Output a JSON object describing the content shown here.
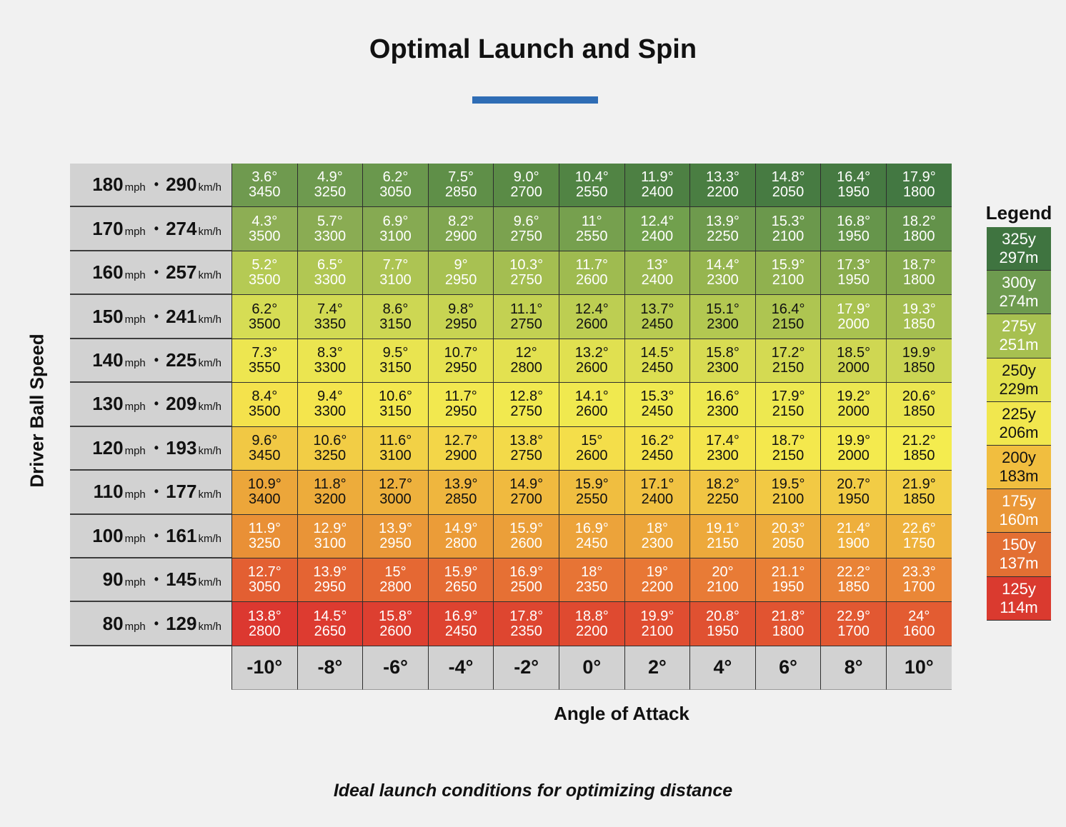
{
  "title": "Optimal Launch and Spin",
  "caption": "Ideal launch conditions for optimizing distance",
  "ylabel": "Driver Ball Speed",
  "xlabel": "Angle of Attack",
  "legend_title": "Legend",
  "units": {
    "mph": "mph",
    "kmh": "km/h",
    "separator": "•"
  },
  "legend": [
    {
      "yards": "325y",
      "meters": "297m",
      "color": "#3f7440"
    },
    {
      "yards": "300y",
      "meters": "274m",
      "color": "#6e9b4f"
    },
    {
      "yards": "275y",
      "meters": "251m",
      "color": "#a7c050"
    },
    {
      "yards": "250y",
      "meters": "229m",
      "color": "#e2e14d"
    },
    {
      "yards": "225y",
      "meters": "206m",
      "color": "#f1e74e"
    },
    {
      "yards": "200y",
      "meters": "183m",
      "color": "#f1be3f"
    },
    {
      "yards": "175y",
      "meters": "160m",
      "color": "#ea9737"
    },
    {
      "yards": "150y",
      "meters": "137m",
      "color": "#e36f33"
    },
    {
      "yards": "125y",
      "meters": "114m",
      "color": "#da3a2f"
    }
  ],
  "chart_data": {
    "type": "table",
    "title": "Optimal Launch and Spin",
    "xlabel": "Angle of Attack",
    "ylabel": "Driver Ball Speed",
    "columns": [
      "-10°",
      "-8°",
      "-6°",
      "-4°",
      "-2°",
      "0°",
      "2°",
      "4°",
      "6°",
      "8°",
      "10°"
    ],
    "rows": [
      {
        "mph": "180",
        "kmh": "290",
        "launch": [
          "3.6°",
          "4.9°",
          "6.2°",
          "7.5°",
          "9.0°",
          "10.4°",
          "11.9°",
          "13.3°",
          "14.8°",
          "16.4°",
          "17.9°"
        ],
        "spin": [
          "3450",
          "3250",
          "3050",
          "2850",
          "2700",
          "2550",
          "2400",
          "2200",
          "2050",
          "1950",
          "1800"
        ],
        "colors": [
          "#6f9a4f",
          "#6e9a4f",
          "#6a984d",
          "#5f8f48",
          "#5a8b46",
          "#518444",
          "#4d8043",
          "#4a7e42",
          "#477b42",
          "#467a42",
          "#437842"
        ]
      },
      {
        "mph": "170",
        "kmh": "274",
        "launch": [
          "4.3°",
          "5.7°",
          "6.9°",
          "8.2°",
          "9.6°",
          "11°",
          "12.4°",
          "13.9°",
          "15.3°",
          "16.8°",
          "18.2°"
        ],
        "spin": [
          "3500",
          "3300",
          "3100",
          "2900",
          "2750",
          "2550",
          "2400",
          "2250",
          "2100",
          "1950",
          "1800"
        ],
        "colors": [
          "#8dae54",
          "#8aac53",
          "#86aa52",
          "#80a650",
          "#7ba24f",
          "#76a04e",
          "#71a04d",
          "#6e9a4d",
          "#6b984c",
          "#66954b",
          "#63924a"
        ]
      },
      {
        "mph": "160",
        "kmh": "257",
        "launch": [
          "5.2°",
          "6.5°",
          "7.7°",
          "9°",
          "10.3°",
          "11.7°",
          "13°",
          "14.4°",
          "15.9°",
          "17.3°",
          "18.7°"
        ],
        "spin": [
          "3500",
          "3300",
          "3100",
          "2950",
          "2750",
          "2600",
          "2400",
          "2300",
          "2100",
          "1950",
          "1800"
        ],
        "colors": [
          "#b5ca54",
          "#b1c753",
          "#adc453",
          "#a8c152",
          "#a4be51",
          "#9fbb50",
          "#9ab850",
          "#96b54f",
          "#90b14f",
          "#8aad4e",
          "#86aa4d"
        ]
      },
      {
        "mph": "150",
        "kmh": "241",
        "launch": [
          "6.2°",
          "7.4°",
          "8.6°",
          "9.8°",
          "11.1°",
          "12.4°",
          "13.7°",
          "15.1°",
          "16.4°",
          "17.9°",
          "19.3°"
        ],
        "spin": [
          "3500",
          "3350",
          "3150",
          "2950",
          "2750",
          "2600",
          "2450",
          "2300",
          "2150",
          "2000",
          "1850"
        ],
        "colors": [
          "#d6dd54",
          "#d2da53",
          "#cdd753",
          "#c8d452",
          "#c3d152",
          "#bdce52",
          "#b8cb51",
          "#b3c851",
          "#aec551",
          "#a9c250",
          "#a4be50"
        ]
      },
      {
        "mph": "140",
        "kmh": "225",
        "launch": [
          "7.3°",
          "8.3°",
          "9.5°",
          "10.7°",
          "12°",
          "13.2°",
          "14.5°",
          "15.8°",
          "17.2°",
          "18.5°",
          "19.9°"
        ],
        "spin": [
          "3550",
          "3300",
          "3150",
          "2950",
          "2800",
          "2600",
          "2450",
          "2300",
          "2150",
          "2000",
          "1850"
        ],
        "colors": [
          "#ede650",
          "#ebe550",
          "#e9e450",
          "#e6e350",
          "#e3e150",
          "#e0e050",
          "#dcde51",
          "#d8dc52",
          "#d4da52",
          "#cfd752",
          "#cad553"
        ]
      },
      {
        "mph": "130",
        "kmh": "209",
        "launch": [
          "8.4°",
          "9.4°",
          "10.6°",
          "11.7°",
          "12.8°",
          "14.1°",
          "15.3°",
          "16.6°",
          "17.9°",
          "19.2°",
          "20.6°"
        ],
        "spin": [
          "3500",
          "3300",
          "3150",
          "2950",
          "2750",
          "2600",
          "2450",
          "2300",
          "2150",
          "2000",
          "1850"
        ],
        "colors": [
          "#f4e24c",
          "#f4e54d",
          "#f3e74e",
          "#f2e84f",
          "#f1e94f",
          "#f0e94f",
          "#efe94f",
          "#eee84f",
          "#ede850",
          "#ece750",
          "#ebe650"
        ]
      },
      {
        "mph": "120",
        "kmh": "193",
        "launch": [
          "9.6°",
          "10.6°",
          "11.6°",
          "12.7°",
          "13.8°",
          "15°",
          "16.2°",
          "17.4°",
          "18.7°",
          "19.9°",
          "21.2°"
        ],
        "spin": [
          "3450",
          "3250",
          "3100",
          "2900",
          "2750",
          "2600",
          "2450",
          "2300",
          "2150",
          "2000",
          "1850"
        ],
        "colors": [
          "#f1c844",
          "#f2cd45",
          "#f2d146",
          "#f3d648",
          "#f3da49",
          "#f4de4a",
          "#f4e24b",
          "#f4e54c",
          "#f4e84d",
          "#f4ea4e",
          "#f4ec4f"
        ]
      },
      {
        "mph": "110",
        "kmh": "177",
        "launch": [
          "10.9°",
          "11.8°",
          "12.7°",
          "13.9°",
          "14.9°",
          "15.9°",
          "17.1°",
          "18.2°",
          "19.5°",
          "20.7°",
          "21.9°"
        ],
        "spin": [
          "3400",
          "3200",
          "3000",
          "2850",
          "2700",
          "2550",
          "2400",
          "2250",
          "2100",
          "1950",
          "1850"
        ],
        "colors": [
          "#eca63a",
          "#edac3b",
          "#eeb13d",
          "#efb63e",
          "#f0ba3f",
          "#f0be40",
          "#f1c242",
          "#f1c543",
          "#f2c944",
          "#f2cc45",
          "#f2cf46"
        ]
      },
      {
        "mph": "100",
        "kmh": "161",
        "launch": [
          "11.9°",
          "12.9°",
          "13.9°",
          "14.9°",
          "15.9°",
          "16.9°",
          "18°",
          "19.1°",
          "20.3°",
          "21.4°",
          "22.6°"
        ],
        "spin": [
          "3250",
          "3100",
          "2950",
          "2800",
          "2600",
          "2450",
          "2300",
          "2150",
          "2050",
          "1900",
          "1750"
        ],
        "colors": [
          "#e99036",
          "#e99437",
          "#ea9838",
          "#eb9c38",
          "#eb9f39",
          "#eca33a",
          "#eca63a",
          "#eda93b",
          "#edac3c",
          "#eeaf3c",
          "#eeb23d"
        ]
      },
      {
        "mph": "90",
        "kmh": "145",
        "launch": [
          "12.7°",
          "13.9°",
          "15°",
          "15.9°",
          "16.9°",
          "18°",
          "19°",
          "20°",
          "21.1°",
          "22.2°",
          "23.3°"
        ],
        "spin": [
          "3050",
          "2950",
          "2800",
          "2650",
          "2500",
          "2350",
          "2200",
          "2100",
          "1950",
          "1850",
          "1700"
        ],
        "colors": [
          "#e35f32",
          "#e46433",
          "#e56833",
          "#e56c34",
          "#e67034",
          "#e77435",
          "#e87735",
          "#e87b36",
          "#e97f36",
          "#e98337",
          "#ea8737"
        ]
      },
      {
        "mph": "80",
        "kmh": "129",
        "launch": [
          "13.8°",
          "14.5°",
          "15.8°",
          "16.9°",
          "17.8°",
          "18.8°",
          "19.9°",
          "20.8°",
          "21.8°",
          "22.9°",
          "24°"
        ],
        "spin": [
          "2800",
          "2650",
          "2600",
          "2450",
          "2350",
          "2200",
          "2100",
          "1950",
          "1800",
          "1700",
          "1600"
        ],
        "colors": [
          "#dc3830",
          "#dd3b30",
          "#dd3f30",
          "#de4330",
          "#de4630",
          "#df4a30",
          "#e04d31",
          "#e05131",
          "#e15431",
          "#e25832",
          "#e35c32"
        ]
      }
    ]
  }
}
